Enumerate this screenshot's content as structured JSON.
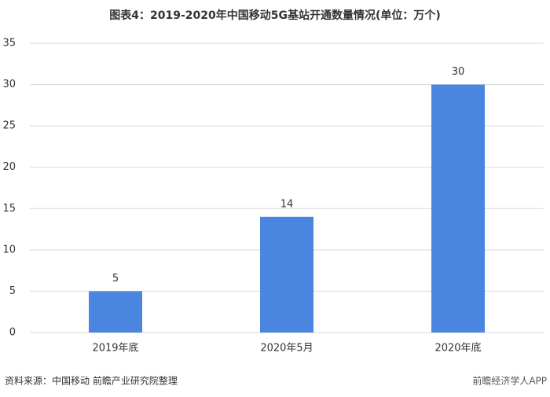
{
  "chart_data": {
    "type": "bar",
    "title": "图表4：2019-2020年中国移动5G基站开通数量情况(单位：万个)",
    "categories": [
      "2019年底",
      "2020年5月",
      "2020年底"
    ],
    "values": [
      5,
      14,
      30
    ],
    "color": "#4a86e0",
    "ylim": [
      0,
      35
    ],
    "yticks": [
      0,
      5,
      10,
      15,
      20,
      25,
      30,
      35
    ],
    "grid": true,
    "source": "资料来源：中国移动 前瞻产业研究院整理",
    "brand": "前瞻经济学人APP"
  }
}
